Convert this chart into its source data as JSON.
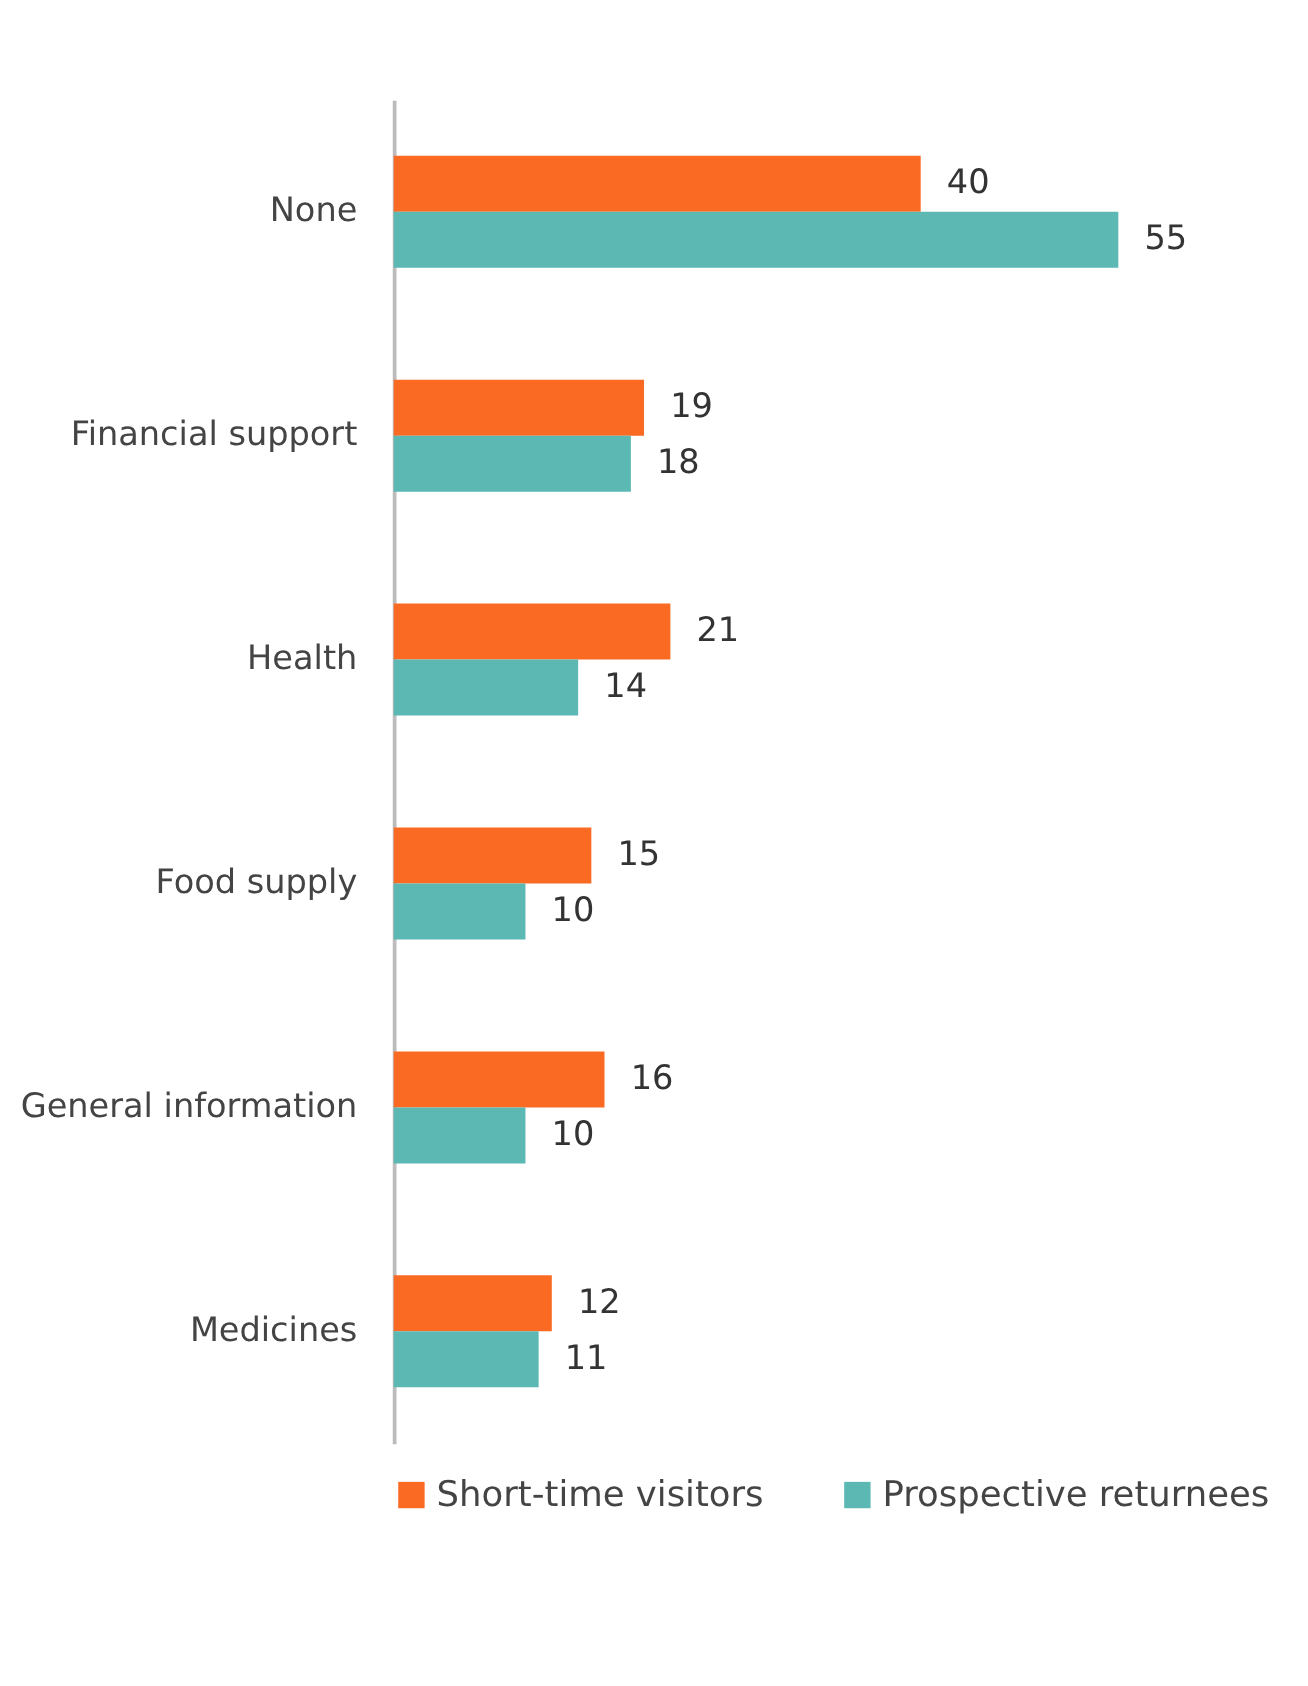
{
  "chart_data": {
    "type": "bar",
    "orientation": "horizontal",
    "categories": [
      "None",
      "Financial support",
      "Health",
      "Food supply",
      "General information",
      "Medicines"
    ],
    "series": [
      {
        "name": "Short-time visitors",
        "color": "#fb6a22",
        "values": [
          40,
          19,
          21,
          15,
          16,
          12
        ]
      },
      {
        "name": "Prospective returnees",
        "color": "#5bb8b3",
        "values": [
          55,
          18,
          14,
          10,
          10,
          11
        ]
      }
    ],
    "data_labels": true,
    "grid": false,
    "legend": "bottom"
  }
}
